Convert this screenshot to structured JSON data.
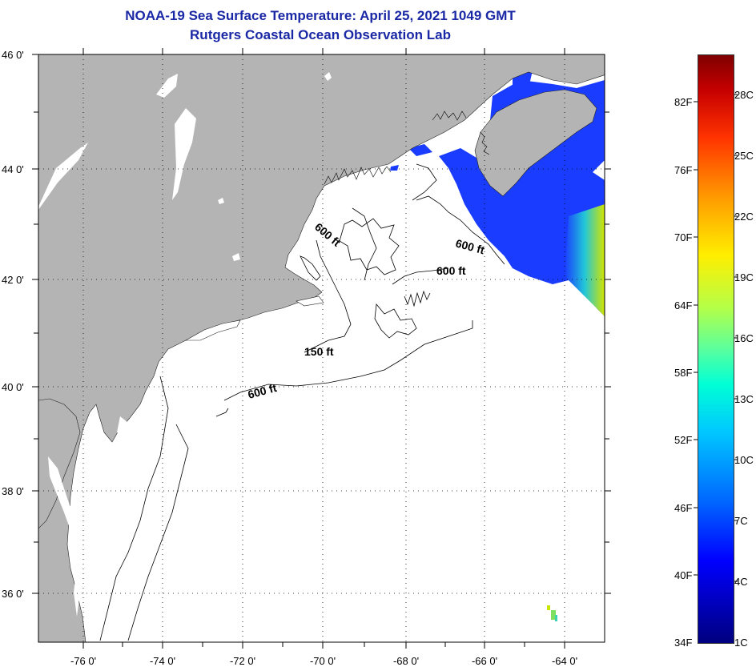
{
  "title": {
    "line1": "NOAA-19 Sea Surface Temperature:  April 25, 2021 1049 GMT",
    "line2": "Rutgers Coastal Ocean Observation Lab"
  },
  "map": {
    "lat_labels": [
      "46 0'",
      "44 0'",
      "42 0'",
      "40 0'",
      "38 0'",
      "36 0'"
    ],
    "lon_labels": [
      "-76 0'",
      "-74 0'",
      "-72 0'",
      "-70 0'",
      "-68 0'",
      "-66 0'",
      "-64 0'"
    ],
    "contour_labels": {
      "gom_600": "600 ft",
      "scotian_600": "600 ft",
      "georges_600": "600 ft",
      "shelf_150": "150 ft",
      "shelf_600": "600 ft"
    },
    "colors": {
      "land": "#b4b4b4",
      "ocean": "#ffffff",
      "title": "#1a28a6",
      "cold_water": "#1a3cff",
      "warm_patch": "#c8e600"
    }
  },
  "colorbar": {
    "fahrenheit": [
      "82F",
      "76F",
      "70F",
      "64F",
      "58F",
      "52F",
      "46F",
      "40F",
      "34F"
    ],
    "celsius": [
      "28C",
      "25C",
      "22C",
      "19C",
      "16C",
      "13C",
      "10C",
      "7C",
      "4C",
      "1C"
    ]
  }
}
